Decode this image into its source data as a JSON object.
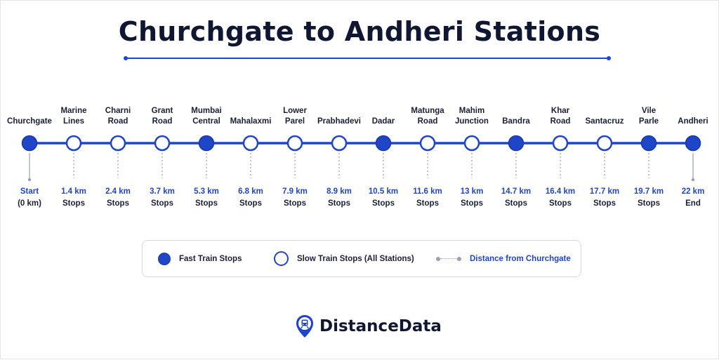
{
  "title": "Churchgate to Andheri Stations",
  "colors": {
    "accent": "#1f45c9",
    "text": "#1a1f36",
    "muted": "#9aa0ad"
  },
  "stations": [
    {
      "name": "Churchgate",
      "distance": "Start",
      "note": "(0 km)",
      "type": "fast"
    },
    {
      "name": "Marine\nLines",
      "distance": "1.4 km",
      "note": "Stops",
      "type": "slow"
    },
    {
      "name": "Charni\nRoad",
      "distance": "2.4 km",
      "note": "Stops",
      "type": "slow"
    },
    {
      "name": "Grant\nRoad",
      "distance": "3.7 km",
      "note": "Stops",
      "type": "slow"
    },
    {
      "name": "Mumbai\nCentral",
      "distance": "5.3 km",
      "note": "Stops",
      "type": "fast"
    },
    {
      "name": "Mahalaxmi",
      "distance": "6.8 km",
      "note": "Stops",
      "type": "slow"
    },
    {
      "name": "Lower\nParel",
      "distance": "7.9 km",
      "note": "Stops",
      "type": "slow"
    },
    {
      "name": "Prabhadevi",
      "distance": "8.9 km",
      "note": "Stops",
      "type": "slow"
    },
    {
      "name": "Dadar",
      "distance": "10.5 km",
      "note": "Stops",
      "type": "fast"
    },
    {
      "name": "Matunga\nRoad",
      "distance": "11.6 km",
      "note": "Stops",
      "type": "slow"
    },
    {
      "name": "Mahim\nJunction",
      "distance": "13 km",
      "note": "Stops",
      "type": "slow"
    },
    {
      "name": "Bandra",
      "distance": "14.7 km",
      "note": "Stops",
      "type": "fast"
    },
    {
      "name": "Khar\nRoad",
      "distance": "16.4 km",
      "note": "Stops",
      "type": "slow"
    },
    {
      "name": "Santacruz",
      "distance": "17.7 km",
      "note": "Stops",
      "type": "slow"
    },
    {
      "name": "Vile\nParle",
      "distance": "19.7 km",
      "note": "Stops",
      "type": "fast"
    },
    {
      "name": "Andheri",
      "distance": "22 km",
      "note": "End",
      "type": "fast"
    }
  ],
  "legend": {
    "fast": "Fast Train Stops",
    "slow": "Slow Train Stops (All Stations)",
    "distance": "Distance from Churchgate"
  },
  "brand": {
    "name": "DistanceData",
    "icon": "map-pin-train-icon"
  }
}
